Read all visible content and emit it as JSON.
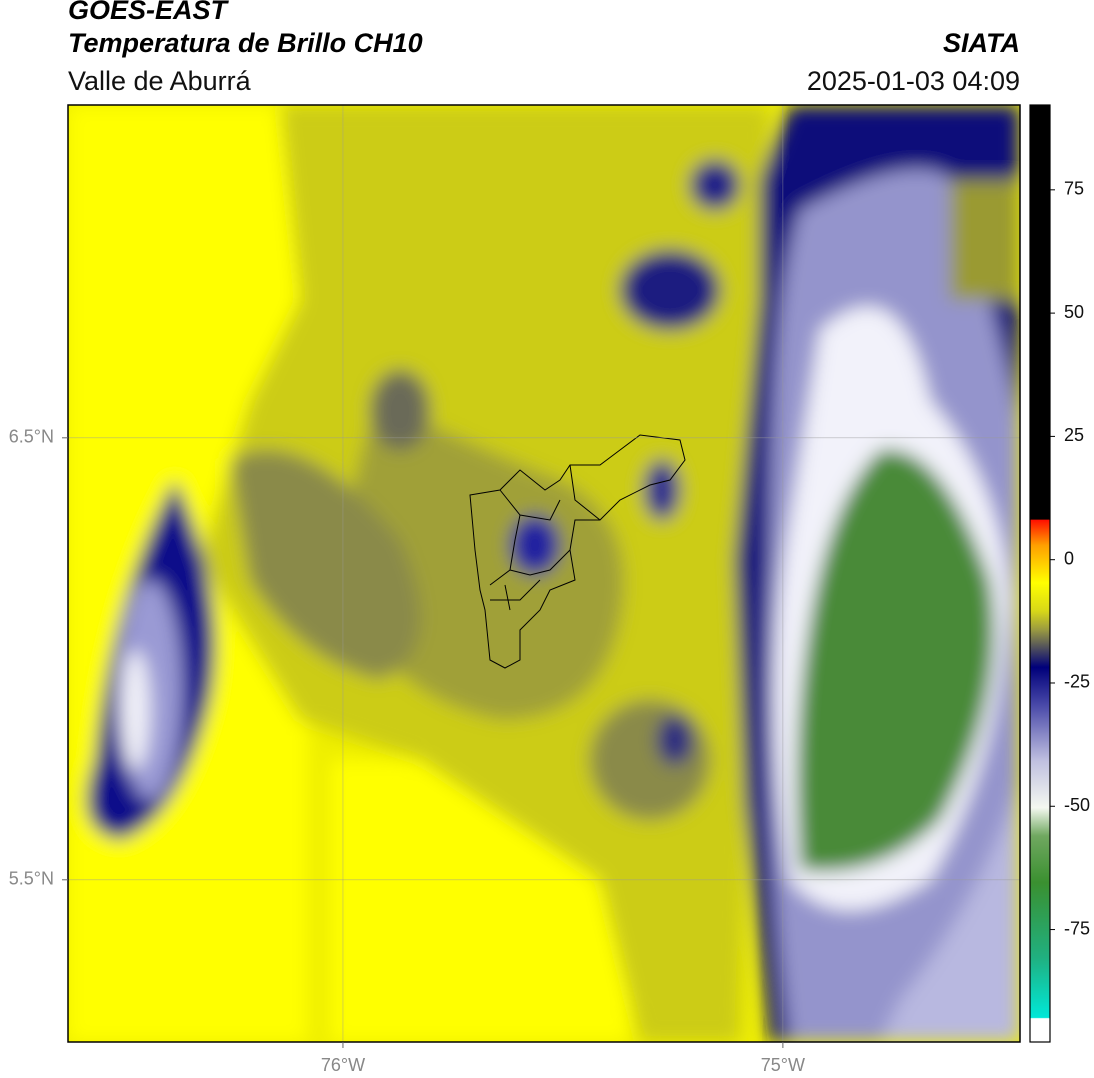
{
  "header": {
    "title": "GOES-EAST",
    "subtitle": "Temperatura de Brillo CH10",
    "region": "Valle de Aburrá",
    "source": "SIATA",
    "datetime": "2025-01-03 04:09"
  },
  "map": {
    "xlim": [
      -76.625,
      -74.461
    ],
    "ylim": [
      5.133,
      7.253
    ],
    "xticks": [
      {
        "value": -76,
        "label": "76°W"
      },
      {
        "value": -75,
        "label": "75°W"
      }
    ],
    "yticks": [
      {
        "value": 6.5,
        "label": "6.5°N"
      },
      {
        "value": 5.5,
        "label": "5.5°N"
      }
    ],
    "grid": true
  },
  "colorbar": {
    "lim": [
      -97.8,
      92.2
    ],
    "ticks": [
      75,
      50,
      25,
      0,
      -25,
      -50,
      -75
    ]
  }
}
